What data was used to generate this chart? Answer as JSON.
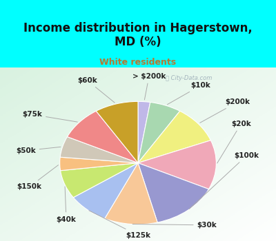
{
  "title": "Income distribution in Hagerstown,\nMD (%)",
  "subtitle": "White residents",
  "title_color": "#111111",
  "subtitle_color": "#b87830",
  "background_color": "#00ffff",
  "watermark": "City-Data.com",
  "labels": [
    "> $200k",
    "$10k",
    "$200k",
    "$20k",
    "$100k",
    "$30k",
    "$125k",
    "$40k",
    "$150k",
    "$50k",
    "$75k",
    "$60k"
  ],
  "values": [
    2.5,
    6.5,
    10.0,
    13.0,
    14.0,
    11.0,
    8.5,
    7.5,
    3.5,
    5.5,
    9.0,
    9.0
  ],
  "colors": [
    "#c0b8e8",
    "#a8d8b0",
    "#f0f080",
    "#f0a8b8",
    "#9898d0",
    "#f8c898",
    "#a8c0f0",
    "#c8e870",
    "#f8c080",
    "#d0c8b8",
    "#f08888",
    "#c8a028"
  ],
  "startangle": 90,
  "label_fontsize": 7.5,
  "label_color": "#222222",
  "title_fontsize": 12,
  "subtitle_fontsize": 9
}
